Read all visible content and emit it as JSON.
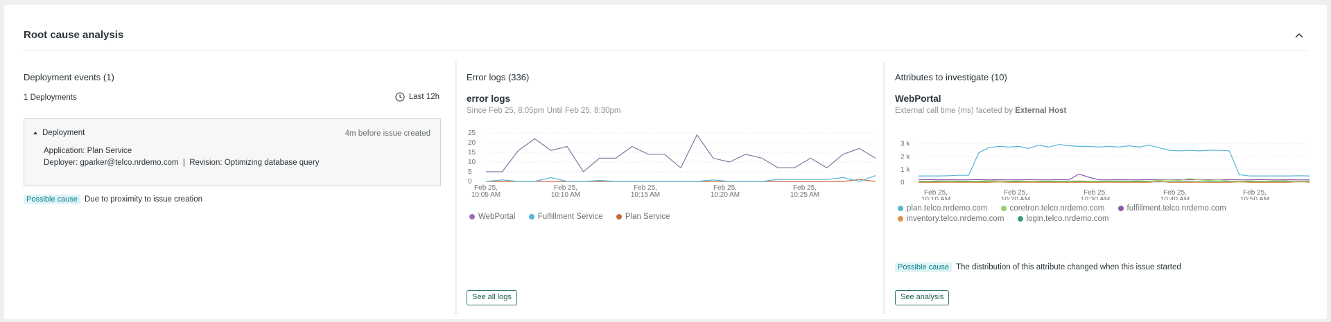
{
  "panel": {
    "title": "Root cause analysis"
  },
  "deployments": {
    "title": "Deployment events (1)",
    "count_label": "1 Deployments",
    "time_range": "Last 12h",
    "item": {
      "label": "Deployment",
      "timing": "4m before issue created",
      "application": "Application: Plan Service",
      "deployer": "Deployer: gparker@telco.nrdemo.com  |  Revision: Optimizing database query"
    },
    "cause_badge": "Possible cause",
    "cause_text": "Due to proximity to issue creation"
  },
  "error_logs": {
    "section_title": "Error logs (336)",
    "chart_title": "error logs",
    "chart_subtitle": "Since Feb 25, 8:05pm Until Feb 25, 8:30pm",
    "button": "See all logs",
    "legend": [
      {
        "name": "WebPortal",
        "color": "#9b6fb8"
      },
      {
        "name": "Fulfillment Service",
        "color": "#58b5d4"
      },
      {
        "name": "Plan Service",
        "color": "#c86a3c"
      }
    ]
  },
  "attributes": {
    "section_title": "Attributes to investigate (10)",
    "chart_title": "WebPortal",
    "chart_subtitle_prefix": "External call time (ms) faceted by ",
    "chart_subtitle_bold": "External Host",
    "cause_badge": "Possible cause",
    "cause_text": "The distribution of this attribute changed when this issue started",
    "button": "See analysis",
    "legend": [
      {
        "name": "plan.telco.nrdemo.com",
        "color": "#58b5d4"
      },
      {
        "name": "coretron.telco.nrdemo.com",
        "color": "#9dcf6a"
      },
      {
        "name": "fulfillment.telco.nrdemo.com",
        "color": "#8b58a8"
      },
      {
        "name": "inventory.telco.nrdemo.com",
        "color": "#e28f4a"
      },
      {
        "name": "login.telco.nrdemo.com",
        "color": "#3d9b73"
      }
    ]
  },
  "chart_data": [
    {
      "type": "line",
      "title": "error logs",
      "subtitle": "Since Feb 25, 8:05pm Until Feb 25, 8:30pm",
      "ylim": [
        0,
        25
      ],
      "y_ticks": [
        "25",
        "20",
        "15",
        "10",
        "5",
        "0"
      ],
      "x_tick_labels": [
        [
          "Feb 25,",
          "10:05 AM"
        ],
        [
          "Feb 25,",
          "10:10 AM"
        ],
        [
          "Feb 25,",
          "10:15 AM"
        ],
        [
          "Feb 25,",
          "10:20 AM"
        ],
        [
          "Feb 25,",
          "10:25 AM"
        ]
      ],
      "grid": true,
      "legend_position": "bottom",
      "series": [
        {
          "name": "WebPortal",
          "color": "#7d7a9e",
          "values": [
            5,
            5,
            16,
            22,
            16,
            18,
            5,
            12,
            12,
            18,
            14,
            14,
            7,
            24,
            12,
            10,
            14,
            12,
            7,
            7,
            12,
            7,
            14,
            17,
            12
          ]
        },
        {
          "name": "Fulfillment Service",
          "color": "#58b5d4",
          "values": [
            0,
            0.8,
            0,
            0,
            2,
            0,
            0,
            0.5,
            0,
            0,
            0,
            0,
            0,
            0,
            0.8,
            0,
            0,
            0,
            1,
            1,
            1,
            1,
            2,
            0,
            3
          ]
        },
        {
          "name": "Plan Service",
          "color": "#c86a3c",
          "values": [
            0,
            0,
            0,
            0,
            0,
            0,
            0,
            0,
            0,
            0,
            0,
            0,
            0,
            0,
            0,
            0,
            0,
            0,
            0,
            0,
            0,
            0,
            0,
            1,
            0
          ]
        }
      ]
    },
    {
      "type": "line",
      "title": "WebPortal",
      "subtitle": "External call time (ms) faceted by External Host",
      "ylim": [
        -300,
        3200
      ],
      "y_ticks": [
        "3 k",
        "2 k",
        "1 k",
        "0"
      ],
      "x_tick_labels": [
        [
          "Feb 25,",
          "10:10 AM"
        ],
        [
          "Feb 25,",
          "10:20 AM"
        ],
        [
          "Feb 25,",
          "10:30 AM"
        ],
        [
          "Feb 25,",
          "10:40 AM"
        ],
        [
          "Feb 25,",
          "10:50 AM"
        ]
      ],
      "grid": true,
      "legend_position": "bottom",
      "series": [
        {
          "name": "plan.telco.nrdemo.com",
          "color": "#58b5d4",
          "values": [
            500,
            500,
            500,
            520,
            550,
            550,
            2300,
            2700,
            2800,
            2750,
            2800,
            2650,
            2900,
            2750,
            2950,
            2850,
            2800,
            2800,
            2750,
            2800,
            2750,
            2850,
            2750,
            2900,
            2700,
            2500,
            2450,
            2500,
            2450,
            2500,
            2500,
            2450,
            600,
            500,
            500,
            500,
            500,
            500,
            520,
            500
          ]
        },
        {
          "name": "coretron.telco.nrdemo.com",
          "color": "#9dcf6a",
          "values": [
            100,
            100,
            120,
            100,
            110,
            100,
            100,
            150,
            100,
            100,
            120,
            100,
            100,
            110,
            100,
            100,
            120,
            100,
            100,
            110,
            100,
            100,
            120,
            100,
            150,
            200,
            150,
            300,
            200,
            150,
            200,
            100,
            100,
            120,
            100,
            100,
            150,
            100,
            100,
            120
          ]
        },
        {
          "name": "fulfillment.telco.nrdemo.com",
          "color": "#8b58a8",
          "values": [
            200,
            220,
            200,
            210,
            200,
            200,
            220,
            200,
            210,
            200,
            200,
            220,
            200,
            200,
            210,
            200,
            650,
            400,
            200,
            200,
            210,
            200,
            200,
            220,
            200,
            210,
            200,
            200,
            220,
            200,
            200,
            210,
            200,
            200,
            220,
            200,
            200,
            210,
            200,
            200
          ]
        },
        {
          "name": "inventory.telco.nrdemo.com",
          "color": "#e28f4a",
          "values": [
            0,
            0,
            0,
            10,
            0,
            0,
            0,
            0,
            50,
            0,
            0,
            20,
            0,
            0,
            0,
            0,
            0,
            0,
            0,
            10,
            0,
            0,
            0,
            0,
            100,
            0,
            0,
            0,
            20,
            0,
            0,
            0,
            50,
            0,
            0,
            0,
            0,
            0,
            80,
            0
          ]
        },
        {
          "name": "login.telco.nrdemo.com",
          "color": "#3d9b73",
          "values": [
            50,
            50,
            50,
            50,
            50,
            50,
            50,
            50,
            50,
            50,
            50,
            50,
            50,
            50,
            50,
            50,
            50,
            50,
            50,
            50,
            50,
            50,
            50,
            50,
            50,
            50,
            50,
            50,
            50,
            50,
            50,
            50,
            50,
            50,
            50,
            50,
            50,
            50,
            50,
            50
          ]
        }
      ]
    }
  ]
}
